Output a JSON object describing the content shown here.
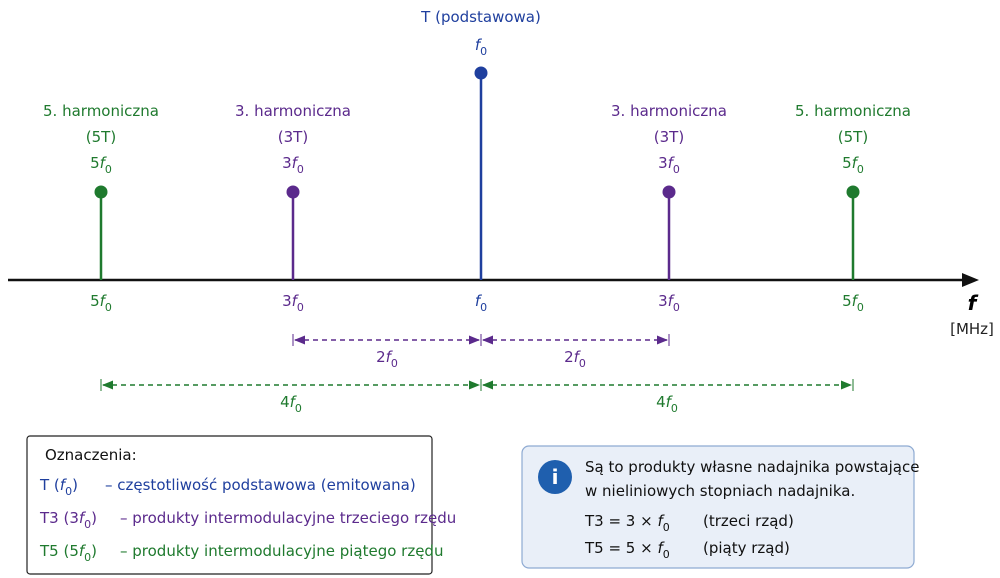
{
  "axis": {
    "label": "f",
    "unit": "[MHz]"
  },
  "peaks": [
    {
      "name": "5. harmoniczna",
      "tag": "(5T)",
      "freq": {
        "pre": "5",
        "var": "f",
        "sub": "0"
      }
    },
    {
      "name": "3. harmoniczna",
      "tag": "(3T)",
      "freq": {
        "pre": "3",
        "var": "f",
        "sub": "0"
      }
    },
    {
      "name": "T (podstawowa)",
      "freq": {
        "var": "f",
        "sub": "0"
      }
    },
    {
      "name": "3. harmoniczna",
      "tag": "(3T)",
      "freq": {
        "pre": "3",
        "var": "f",
        "sub": "0"
      }
    },
    {
      "name": "5. harmoniczna",
      "tag": "(5T)",
      "freq": {
        "pre": "5",
        "var": "f",
        "sub": "0"
      }
    }
  ],
  "spans": [
    {
      "pre": "2",
      "var": "f",
      "sub": "0"
    },
    {
      "pre": "2",
      "var": "f",
      "sub": "0"
    },
    {
      "pre": "4",
      "var": "f",
      "sub": "0"
    },
    {
      "pre": "4",
      "var": "f",
      "sub": "0"
    }
  ],
  "legend": {
    "title": "Oznaczenia:",
    "items": [
      {
        "symbol": {
          "pre": "T (",
          "var": "f",
          "sub": "0",
          "post": ")"
        },
        "description": "– częstotliwość podstawowa (emitowana)"
      },
      {
        "symbol": {
          "pre": "T3 (3",
          "var": "f",
          "sub": "0",
          "post": ")"
        },
        "description": "– produkty intermodulacyjne trzeciego rzędu"
      },
      {
        "symbol": {
          "pre": "T5 (5",
          "var": "f",
          "sub": "0",
          "post": ")"
        },
        "description": "– produkty intermodulacyjne piątego rzędu"
      }
    ]
  },
  "info": {
    "icon": "i",
    "lines": [
      "Są to produkty własne nadajnika powstające",
      "w nieliniowych stopniach nadajnika."
    ],
    "formulas": [
      {
        "expr": {
          "pre": "T3 = 3 × ",
          "var": "f",
          "sub": "0"
        },
        "note": "(trzeci rząd)"
      },
      {
        "expr": {
          "pre": "T5 = 5 × ",
          "var": "f",
          "sub": "0"
        },
        "note": "(piąty rząd)"
      }
    ]
  }
}
